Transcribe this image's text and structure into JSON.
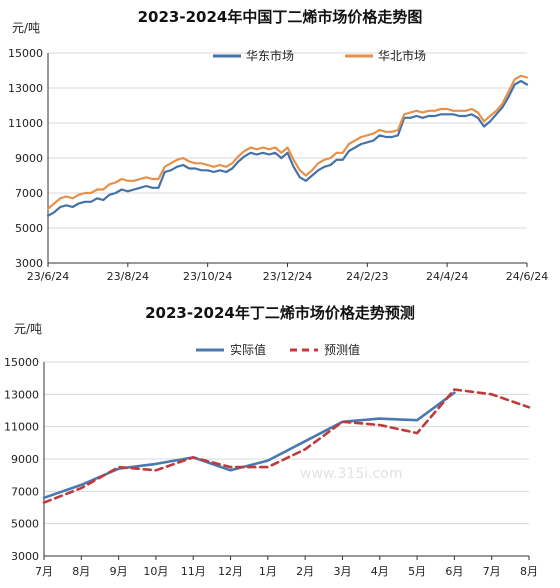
{
  "chart_data": [
    {
      "type": "line",
      "title": "2023-2024年中国丁二烯市场价格走势图",
      "unit_label": "元/吨",
      "ylim": [
        3000,
        15000
      ],
      "yticks": [
        3000,
        5000,
        7000,
        9000,
        11000,
        13000,
        15000
      ],
      "xtick_labels": [
        "23/6/24",
        "23/8/24",
        "23/10/24",
        "23/12/24",
        "24/2/23",
        "24/4/24",
        "24/6/24"
      ],
      "grid": true,
      "legend_position": "top-center",
      "series": [
        {
          "name": "华东市场",
          "color": "#4472a8",
          "values": [
            5700,
            5900,
            6200,
            6300,
            6200,
            6400,
            6500,
            6500,
            6700,
            6600,
            6900,
            7000,
            7200,
            7100,
            7200,
            7300,
            7400,
            7300,
            7300,
            8200,
            8300,
            8500,
            8600,
            8400,
            8400,
            8300,
            8300,
            8200,
            8300,
            8200,
            8400,
            8800,
            9100,
            9300,
            9200,
            9300,
            9200,
            9300,
            9000,
            9300,
            8500,
            7900,
            7700,
            8000,
            8300,
            8500,
            8600,
            8900,
            8900,
            9400,
            9600,
            9800,
            9900,
            10000,
            10300,
            10200,
            10200,
            10300,
            11300,
            11300,
            11400,
            11300,
            11400,
            11400,
            11500,
            11500,
            11500,
            11400,
            11400,
            11500,
            11300,
            10800,
            11100,
            11500,
            11900,
            12500,
            13200,
            13400,
            13200
          ]
        },
        {
          "name": "华北市场",
          "color": "#e8904a",
          "values": [
            6100,
            6400,
            6700,
            6800,
            6700,
            6900,
            7000,
            7000,
            7200,
            7200,
            7500,
            7600,
            7800,
            7700,
            7700,
            7800,
            7900,
            7800,
            7800,
            8500,
            8700,
            8900,
            9000,
            8800,
            8700,
            8700,
            8600,
            8500,
            8600,
            8500,
            8700,
            9100,
            9400,
            9600,
            9500,
            9600,
            9500,
            9600,
            9300,
            9600,
            8900,
            8300,
            8000,
            8300,
            8700,
            8900,
            9000,
            9300,
            9300,
            9800,
            10000,
            10200,
            10300,
            10400,
            10600,
            10500,
            10500,
            10600,
            11500,
            11600,
            11700,
            11600,
            11700,
            11700,
            11800,
            11800,
            11700,
            11700,
            11700,
            11800,
            11600,
            11100,
            11400,
            11700,
            12100,
            12800,
            13500,
            13700,
            13600
          ]
        }
      ]
    },
    {
      "type": "line",
      "title": "2023-2024年丁二烯市场价格走势预测",
      "unit_label": "元/吨",
      "ylim": [
        3000,
        15000
      ],
      "yticks": [
        3000,
        5000,
        7000,
        9000,
        11000,
        13000,
        15000
      ],
      "categories": [
        "7月",
        "8月",
        "9月",
        "10月",
        "11月",
        "12月",
        "1月",
        "2月",
        "3月",
        "4月",
        "5月",
        "6月",
        "7月",
        "8月"
      ],
      "grid": true,
      "legend_position": "top-center",
      "watermark": "www.315i.com",
      "series": [
        {
          "name": "实际值",
          "color": "#4a78b0",
          "dash": false,
          "values": [
            6600,
            7400,
            8400,
            8700,
            9100,
            8300,
            8900,
            10100,
            11300,
            11500,
            11400,
            13100,
            null,
            null
          ]
        },
        {
          "name": "预测值",
          "color": "#c0393b",
          "dash": true,
          "values": [
            6300,
            7200,
            8500,
            8300,
            9100,
            8500,
            8500,
            9600,
            11300,
            11100,
            10600,
            13300,
            13000,
            12200
          ]
        }
      ]
    }
  ]
}
